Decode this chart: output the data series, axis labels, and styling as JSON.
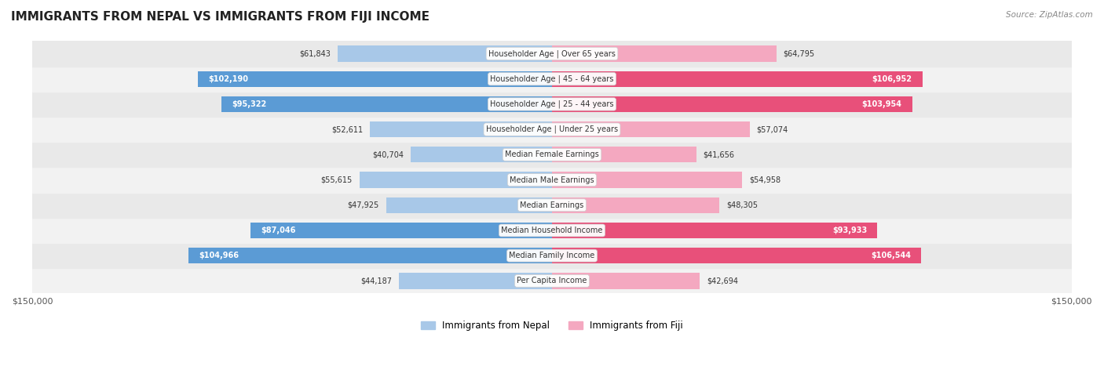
{
  "title": "IMMIGRANTS FROM NEPAL VS IMMIGRANTS FROM FIJI INCOME",
  "source": "Source: ZipAtlas.com",
  "categories": [
    "Per Capita Income",
    "Median Family Income",
    "Median Household Income",
    "Median Earnings",
    "Median Male Earnings",
    "Median Female Earnings",
    "Householder Age | Under 25 years",
    "Householder Age | 25 - 44 years",
    "Householder Age | 45 - 64 years",
    "Householder Age | Over 65 years"
  ],
  "nepal_values": [
    44187,
    104966,
    87046,
    47925,
    55615,
    40704,
    52611,
    95322,
    102190,
    61843
  ],
  "fiji_values": [
    42694,
    106544,
    93933,
    48305,
    54958,
    41656,
    57074,
    103954,
    106952,
    64795
  ],
  "nepal_labels": [
    "$44,187",
    "$104,966",
    "$87,046",
    "$47,925",
    "$55,615",
    "$40,704",
    "$52,611",
    "$95,322",
    "$102,190",
    "$61,843"
  ],
  "fiji_labels": [
    "$42,694",
    "$106,544",
    "$93,933",
    "$48,305",
    "$54,958",
    "$41,656",
    "$57,074",
    "$103,954",
    "$106,952",
    "$64,795"
  ],
  "nepal_color_light": "#a8c8e8",
  "nepal_color_dark": "#5b9bd5",
  "fiji_color_light": "#f4a8c0",
  "fiji_color_dark": "#e8507a",
  "bar_height": 0.35,
  "xlim": 150000,
  "background_color": "#f5f5f5",
  "row_bg_light": "#f0f0f0",
  "row_bg_dark": "#e8e8e8",
  "legend_nepal": "Immigrants from Nepal",
  "legend_fiji": "Immigrants from Fiji"
}
